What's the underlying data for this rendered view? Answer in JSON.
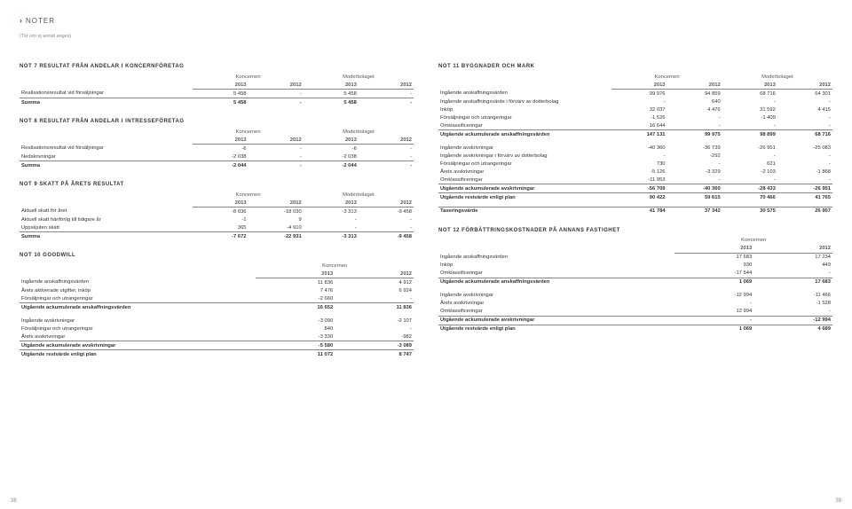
{
  "header": {
    "chevron": "›",
    "title": "NOTER"
  },
  "subnote": "(Tkr om ej annat anges)",
  "pageLeft": "38",
  "pageRight": "39",
  "labels": {
    "koncernen": "Koncernen",
    "moderbolaget": "Moderbolaget"
  },
  "note7": {
    "title": "NOT 7 RESULTAT FRÅN ANDELAR I KONCERNFÖRETAG",
    "years": [
      "2013",
      "2012",
      "2013",
      "2012"
    ],
    "rows": [
      {
        "l": "Realisationsresultat vid försäljningar",
        "v": [
          "5 458",
          "-",
          "5 458",
          "-"
        ]
      }
    ],
    "sum": {
      "l": "Summa",
      "v": [
        "5 458",
        "-",
        "5 458",
        "-"
      ]
    }
  },
  "note8": {
    "title": "NOT 8 RESULTAT FRÅN ANDELAR I INTRESSEFÖRETAG",
    "years": [
      "2013",
      "2012",
      "2013",
      "2012"
    ],
    "rows": [
      {
        "l": "Realisationsresultat vid försäljningar",
        "v": [
          "-6",
          "-",
          "-6",
          "-"
        ]
      },
      {
        "l": "Nedskrivningar",
        "v": [
          "-2 038",
          "-",
          "-2 038",
          "-"
        ]
      }
    ],
    "sum": {
      "l": "Summa",
      "v": [
        "-2 044",
        "-",
        "-2 044",
        "-"
      ]
    }
  },
  "note9": {
    "title": "NOT 9 SKATT PÅ ÅRETS RESULTAT",
    "years": [
      "2013",
      "2012",
      "2013",
      "2012"
    ],
    "rows": [
      {
        "l": "Aktuell skatt för året",
        "v": [
          "-8 036",
          "-18 030",
          "-3 313",
          "-9 458"
        ]
      },
      {
        "l": "Aktuell skatt hänförlig till tidigare år",
        "v": [
          "-1",
          "9",
          "-",
          "-"
        ]
      },
      {
        "l": "Uppskjuten skatt",
        "v": [
          "365",
          "-4 910",
          "-",
          "-"
        ]
      }
    ],
    "sum": {
      "l": "Summa",
      "v": [
        "-7 672",
        "-22 931",
        "-3 313",
        "-9 458"
      ]
    }
  },
  "note10": {
    "title": "NOT 10 GOODWILL",
    "years": [
      "2013",
      "2012"
    ],
    "block1": [
      {
        "l": "Ingående anskaffningsvärden",
        "v": [
          "11 836",
          "4 912"
        ]
      },
      {
        "l": "Årets aktiverade utgifter, inköp",
        "v": [
          "7 476",
          "6 924"
        ]
      },
      {
        "l": "Försäljningar och utrangeringar",
        "v": [
          "-2 660",
          "-"
        ]
      }
    ],
    "sum1": {
      "l": "Utgående ackumulerade anskaffningsvärden",
      "v": [
        "16 652",
        "11 836"
      ]
    },
    "block2": [
      {
        "l": "Ingående avskrivningar",
        "v": [
          "-3 090",
          "-2 107"
        ]
      },
      {
        "l": "Försäljningar och utrangeringar",
        "v": [
          "840",
          "-"
        ]
      },
      {
        "l": "Årets avskrivningar",
        "v": [
          "-3 330",
          "-982"
        ]
      }
    ],
    "sum2": {
      "l": "Utgående ackumulerade avskrivningar",
      "v": [
        "-5 580",
        "-3 089"
      ]
    },
    "sum3": {
      "l": "Utgående restvärde enligt plan",
      "v": [
        "11 072",
        "8 747"
      ]
    }
  },
  "note11": {
    "title": "NOT 11 BYGGNADER OCH MARK",
    "years": [
      "2013",
      "2012",
      "2013",
      "2012"
    ],
    "block1": [
      {
        "l": "Ingående anskaffningsvärden",
        "v": [
          "99 976",
          "94 859",
          "68 716",
          "64 301"
        ]
      },
      {
        "l": "Ingående anskaffningsvärde i förvärv av dotterbolag",
        "v": [
          "-",
          "640",
          "-",
          "-"
        ]
      },
      {
        "l": "Inköp",
        "v": [
          "32 037",
          "4 476",
          "31 592",
          "4 415"
        ]
      },
      {
        "l": "Försäljningar och utrangeringar",
        "v": [
          "-1 526",
          "-",
          "-1 409",
          "-"
        ]
      },
      {
        "l": "Omklassificeringar",
        "v": [
          "16 644",
          "-",
          "-",
          "-"
        ]
      }
    ],
    "sum1": {
      "l": "Utgående ackumulerade anskaffningsvärden",
      "v": [
        "147 131",
        "99 975",
        "98 899",
        "68 716"
      ]
    },
    "block2": [
      {
        "l": "Ingående avskrivningar",
        "v": [
          "-40 360",
          "-36 739",
          "-26 951",
          "-25 083"
        ]
      },
      {
        "l": "Ingående avskrivningar i förvärv av dotterbolag",
        "v": [
          "-",
          "-292",
          "-",
          "-"
        ]
      },
      {
        "l": "Försäljningar och utrangeringar",
        "v": [
          "730",
          "-",
          "621",
          "-"
        ]
      },
      {
        "l": "Årets avskrivningar",
        "v": [
          "-5 126",
          "-3 329",
          "-2 103",
          "-1 868"
        ]
      },
      {
        "l": "Omklassificeringar",
        "v": [
          "-11 953",
          "-",
          "-",
          "-"
        ]
      }
    ],
    "sum2": {
      "l": "Utgående ackumulerade avskrivningar",
      "v": [
        "-56 709",
        "-40 360",
        "-28 433",
        "-26 951"
      ]
    },
    "sum3": {
      "l": "Utgående restvärde enligt plan",
      "v": [
        "90 422",
        "59 615",
        "70 466",
        "41 765"
      ]
    },
    "tax": {
      "l": "Taxeringsvärde",
      "v": [
        "41 784",
        "37 342",
        "30 575",
        "26 957"
      ]
    }
  },
  "note12": {
    "title": "NOT 12 FÖRBÄTTRINGSKOSTNADER PÅ ANNANS FASTIGHET",
    "years": [
      "2013",
      "2012"
    ],
    "block1": [
      {
        "l": "Ingående anskaffningsvärden",
        "v": [
          "17 683",
          "17 234"
        ]
      },
      {
        "l": "Inköp",
        "v": [
          "930",
          "449"
        ]
      },
      {
        "l": "Omklassificeringar",
        "v": [
          "-17 544",
          "-"
        ]
      }
    ],
    "sum1": {
      "l": "Utgående ackumulerade anskaffningsvärden",
      "v": [
        "1 069",
        "17 683"
      ]
    },
    "block2": [
      {
        "l": "Ingående avskrivningar",
        "v": [
          "-12 994",
          "-11 466"
        ]
      },
      {
        "l": "Årets avskrivningar",
        "v": [
          "-",
          "-1 528"
        ]
      },
      {
        "l": "Omklassificeringar",
        "v": [
          "12 994",
          "-"
        ]
      }
    ],
    "sum2": {
      "l": "Utgående ackumulerade avskrivningar",
      "v": [
        "-",
        "-12 994"
      ]
    },
    "sum3": {
      "l": "Utgående restvärde enligt plan",
      "v": [
        "1 069",
        "4 689"
      ]
    }
  }
}
